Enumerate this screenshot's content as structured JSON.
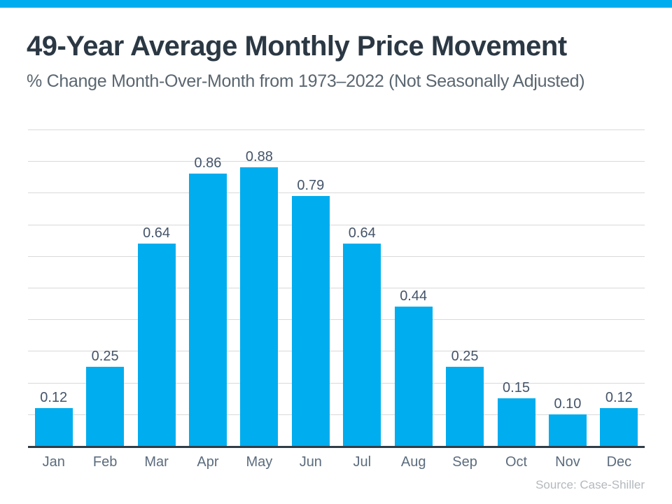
{
  "page": {
    "background_color": "#FFFFFF",
    "accent_color": "#00ADEE"
  },
  "header": {
    "title": "49-Year Average Monthly Price Movement",
    "subtitle": "% Change Month-Over-Month from 1973–2022 (Not Seasonally Adjusted)"
  },
  "chart_data": {
    "type": "bar",
    "title": "49-Year Average Monthly Price Movement",
    "subtitle": "% Change Month-Over-Month from 1973–2022 (Not Seasonally Adjusted)",
    "categories": [
      "Jan",
      "Feb",
      "Mar",
      "Apr",
      "May",
      "Jun",
      "Jul",
      "Aug",
      "Sep",
      "Oct",
      "Nov",
      "Dec"
    ],
    "values": [
      0.12,
      0.25,
      0.64,
      0.86,
      0.88,
      0.79,
      0.64,
      0.44,
      0.25,
      0.15,
      0.1,
      0.12
    ],
    "value_labels": [
      "0.12",
      "0.25",
      "0.64",
      "0.86",
      "0.88",
      "0.79",
      "0.64",
      "0.44",
      "0.25",
      "0.15",
      "0.10",
      "0.12"
    ],
    "xlabel": "",
    "ylabel": "",
    "ylim": [
      0,
      1.0
    ],
    "gridline_step": 0.1,
    "grid": true,
    "legend": "none",
    "y_axis_tick_labels_visible": false,
    "bar_color": "#00ADEE",
    "gridline_color": "#D9D9D9",
    "axis_line_color": "#313D47",
    "value_label_color": "#44546A",
    "category_label_color": "#5B6C7E"
  },
  "footer": {
    "source": "Source: Case-Shiller"
  }
}
